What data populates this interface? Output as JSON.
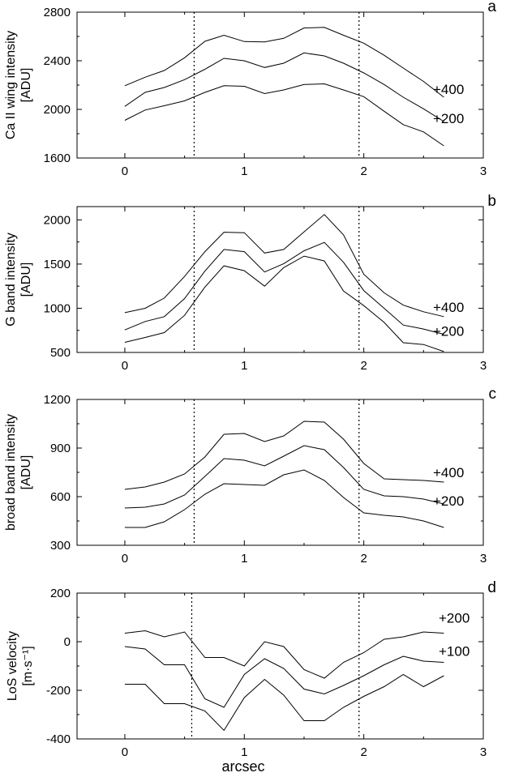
{
  "figure": {
    "xlabel": "arcsec"
  },
  "chart_data": [
    {
      "panel": "a",
      "type": "line",
      "ylabel_lines": [
        "Ca II wing intensity",
        "[ADU]"
      ],
      "xlim": [
        -0.4,
        3
      ],
      "ylim": [
        1600,
        2800
      ],
      "xticks": [
        0,
        1,
        2,
        3
      ],
      "yticks": [
        1600,
        2000,
        2400,
        2800
      ],
      "vlines": [
        0.58,
        1.96
      ],
      "series": [
        {
          "label": "+400",
          "x": [
            0,
            0.17,
            0.33,
            0.5,
            0.67,
            0.83,
            1.0,
            1.17,
            1.33,
            1.5,
            1.67,
            1.83,
            2.0,
            2.17,
            2.33,
            2.5,
            2.67
          ],
          "values": [
            2195,
            2265,
            2320,
            2425,
            2560,
            2610,
            2558,
            2555,
            2585,
            2670,
            2675,
            2610,
            2545,
            2445,
            2340,
            2230,
            2100
          ]
        },
        {
          "label": "+200",
          "x": [
            0,
            0.17,
            0.33,
            0.5,
            0.67,
            0.83,
            1.0,
            1.17,
            1.33,
            1.5,
            1.67,
            1.83,
            2.0,
            2.17,
            2.33,
            2.5,
            2.67
          ],
          "values": [
            2025,
            2140,
            2180,
            2245,
            2330,
            2420,
            2400,
            2345,
            2380,
            2465,
            2440,
            2380,
            2300,
            2205,
            2100,
            2005,
            1900
          ]
        },
        {
          "label": "",
          "x": [
            0,
            0.17,
            0.33,
            0.5,
            0.67,
            0.83,
            1.0,
            1.17,
            1.33,
            1.5,
            1.67,
            1.83,
            2.0,
            2.17,
            2.33,
            2.5,
            2.67
          ],
          "values": [
            1910,
            1995,
            2030,
            2070,
            2140,
            2195,
            2190,
            2130,
            2160,
            2205,
            2210,
            2160,
            2105,
            1985,
            1875,
            1815,
            1700
          ]
        }
      ]
    },
    {
      "panel": "b",
      "type": "line",
      "ylabel_lines": [
        "G band intensity",
        "[ADU]"
      ],
      "xlim": [
        -0.4,
        3
      ],
      "ylim": [
        500,
        2150
      ],
      "xticks": [
        0,
        1,
        2,
        3
      ],
      "yticks": [
        500,
        1000,
        1500,
        2000
      ],
      "vlines": [
        0.58,
        1.96
      ],
      "series": [
        {
          "label": "+400",
          "x": [
            0,
            0.17,
            0.33,
            0.5,
            0.67,
            0.83,
            1.0,
            1.17,
            1.33,
            1.5,
            1.67,
            1.83,
            2.0,
            2.17,
            2.33,
            2.5,
            2.67
          ],
          "values": [
            950,
            1000,
            1115,
            1360,
            1640,
            1860,
            1855,
            1625,
            1665,
            1865,
            2060,
            1830,
            1385,
            1175,
            1035,
            960,
            905
          ]
        },
        {
          "label": "+200",
          "x": [
            0,
            0.17,
            0.33,
            0.5,
            0.67,
            0.83,
            1.0,
            1.17,
            1.33,
            1.5,
            1.67,
            1.83,
            2.0,
            2.17,
            2.33,
            2.5,
            2.67
          ],
          "values": [
            755,
            850,
            905,
            1110,
            1420,
            1665,
            1640,
            1410,
            1505,
            1650,
            1745,
            1520,
            1200,
            1000,
            810,
            765,
            705
          ]
        },
        {
          "label": "",
          "x": [
            0,
            0.17,
            0.33,
            0.5,
            0.67,
            0.83,
            1.0,
            1.17,
            1.33,
            1.5,
            1.67,
            1.83,
            2.0,
            2.17,
            2.33,
            2.5,
            2.67
          ],
          "values": [
            615,
            670,
            725,
            920,
            1240,
            1480,
            1425,
            1250,
            1460,
            1590,
            1535,
            1195,
            1030,
            840,
            610,
            590,
            510
          ]
        }
      ]
    },
    {
      "panel": "c",
      "type": "line",
      "ylabel_lines": [
        "broad band intensity",
        "[ADU]"
      ],
      "xlim": [
        -0.4,
        3
      ],
      "ylim": [
        300,
        1200
      ],
      "xticks": [
        0,
        1,
        2,
        3
      ],
      "yticks": [
        300,
        600,
        900,
        1200
      ],
      "vlines": [
        0.58,
        1.96
      ],
      "series": [
        {
          "label": "+400",
          "x": [
            0,
            0.17,
            0.33,
            0.5,
            0.67,
            0.83,
            1.0,
            1.17,
            1.33,
            1.5,
            1.67,
            1.83,
            2.0,
            2.17,
            2.33,
            2.5,
            2.67
          ],
          "values": [
            645,
            660,
            690,
            740,
            845,
            985,
            990,
            940,
            975,
            1065,
            1060,
            955,
            805,
            710,
            705,
            700,
            690
          ]
        },
        {
          "label": "+200",
          "x": [
            0,
            0.17,
            0.33,
            0.5,
            0.67,
            0.83,
            1.0,
            1.17,
            1.33,
            1.5,
            1.67,
            1.83,
            2.0,
            2.17,
            2.33,
            2.5,
            2.67
          ],
          "values": [
            530,
            535,
            555,
            610,
            725,
            835,
            825,
            790,
            850,
            915,
            890,
            780,
            645,
            605,
            600,
            585,
            555
          ]
        },
        {
          "label": "",
          "x": [
            0,
            0.17,
            0.33,
            0.5,
            0.67,
            0.83,
            1.0,
            1.17,
            1.33,
            1.5,
            1.67,
            1.83,
            2.0,
            2.17,
            2.33,
            2.5,
            2.67
          ],
          "values": [
            410,
            410,
            445,
            520,
            615,
            680,
            675,
            670,
            735,
            765,
            700,
            595,
            500,
            485,
            475,
            450,
            410
          ]
        }
      ]
    },
    {
      "panel": "d",
      "type": "line",
      "ylabel_lines": [
        "LoS velocity",
        "[m·s⁻¹]"
      ],
      "xlim": [
        -0.4,
        3
      ],
      "ylim": [
        -400,
        200
      ],
      "xticks": [
        0,
        1,
        2,
        3
      ],
      "yticks": [
        -400,
        -200,
        0,
        200
      ],
      "vlines": [
        0.56,
        1.96
      ],
      "series": [
        {
          "label": "+200",
          "x": [
            0,
            0.17,
            0.33,
            0.5,
            0.67,
            0.83,
            1.0,
            1.17,
            1.33,
            1.5,
            1.67,
            1.83,
            2.0,
            2.17,
            2.33,
            2.5,
            2.67
          ],
          "values": [
            35,
            45,
            20,
            40,
            -65,
            -65,
            -100,
            0,
            -20,
            -115,
            -150,
            -85,
            -45,
            10,
            20,
            40,
            35
          ]
        },
        {
          "label": "+100",
          "x": [
            0,
            0.17,
            0.33,
            0.5,
            0.67,
            0.83,
            1.0,
            1.17,
            1.33,
            1.5,
            1.67,
            1.83,
            2.0,
            2.17,
            2.33,
            2.5,
            2.67
          ],
          "values": [
            -20,
            -30,
            -95,
            -95,
            -235,
            -270,
            -135,
            -70,
            -110,
            -195,
            -215,
            -180,
            -140,
            -95,
            -60,
            -80,
            -85
          ]
        },
        {
          "label": "",
          "x": [
            0,
            0.17,
            0.33,
            0.5,
            0.67,
            0.83,
            1.0,
            1.17,
            1.33,
            1.5,
            1.67,
            1.83,
            2.0,
            2.17,
            2.33,
            2.5,
            2.67
          ],
          "values": [
            -175,
            -175,
            -255,
            -255,
            -285,
            -365,
            -230,
            -155,
            -220,
            -325,
            -325,
            -270,
            -225,
            -185,
            -135,
            -185,
            -140
          ]
        }
      ]
    }
  ]
}
